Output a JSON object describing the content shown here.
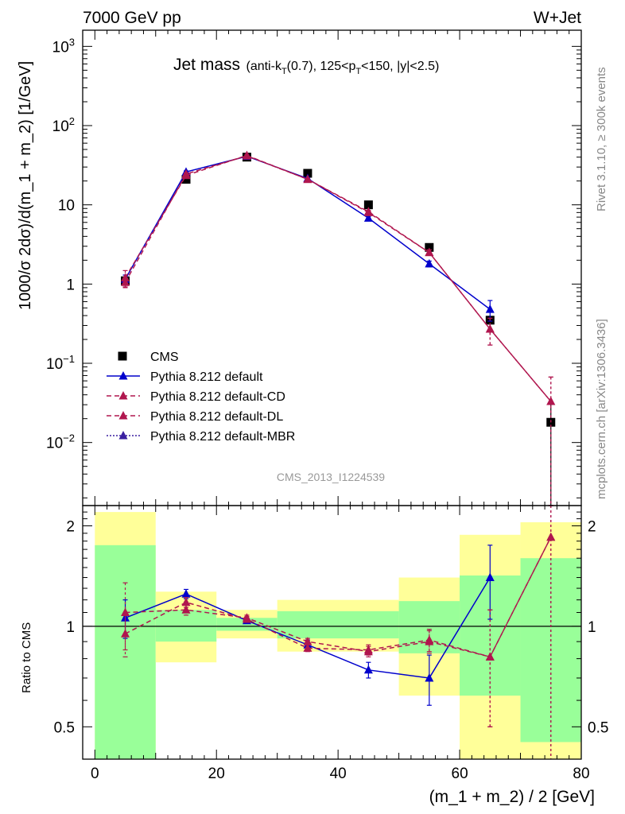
{
  "header": {
    "left": "7000 GeV pp",
    "right": "W+Jet"
  },
  "side_labels": {
    "rivet": "Rivet 3.1.10, ≥ 300k events",
    "mcplots": "mcplots.cern.ch [arXiv:1306.3436]"
  },
  "plot_title": {
    "main": "Jet mass",
    "sub_prefix": "(anti-k",
    "sub_k_sub": "T",
    "sub_middle": "(0.7), 125<p",
    "sub_p_sub": "T",
    "sub_suffix": "<150, |y|<2.5)"
  },
  "watermark": "CMS_2013_I1224539",
  "colors": {
    "cms": "#000000",
    "default": "#0000cc",
    "cd": "#b0164e",
    "dl": "#b0164e",
    "mbr": "#3a1fa0",
    "band_green": "#99ff99",
    "band_yellow": "#ffff99"
  },
  "chart_data": {
    "type": "line",
    "xlabel": "(m_1 + m_2) / 2 [GeV]",
    "xlim": [
      -2,
      80
    ],
    "x_ticks": [
      0,
      20,
      40,
      60,
      80
    ],
    "x_tick_labels": [
      "0",
      "20",
      "40",
      "60",
      "80"
    ],
    "main": {
      "ylabel": "1000/σ 2dσ)/d(m_1 + m_2) [1/GeV]",
      "yscale": "log",
      "ylim": [
        0.0016,
        1600
      ],
      "y_ticks": [
        {
          "value": 1000,
          "base": "10",
          "exp": "3"
        },
        {
          "value": 100,
          "base": "10",
          "exp": "2"
        },
        {
          "value": 10,
          "base": "10",
          "exp": ""
        },
        {
          "value": 1,
          "base": "1",
          "exp": ""
        },
        {
          "value": 0.1,
          "base": "10",
          "exp": "−1"
        },
        {
          "value": 0.01,
          "base": "10",
          "exp": "−2"
        }
      ]
    },
    "ratio": {
      "ylabel": "Ratio to CMS",
      "yscale": "log",
      "ylim": [
        0.4,
        2.3
      ],
      "y_ticks": [
        {
          "value": 0.5,
          "label": "0.5"
        },
        {
          "value": 1,
          "label": "1"
        },
        {
          "value": 2,
          "label": "2"
        }
      ],
      "bands": [
        {
          "x0": 0,
          "x1": 10,
          "green": [
            0.4,
            1.75
          ],
          "yellow": [
            0.4,
            2.2
          ]
        },
        {
          "x0": 10,
          "x1": 20,
          "green": [
            0.9,
            1.12
          ],
          "yellow": [
            0.78,
            1.27
          ]
        },
        {
          "x0": 20,
          "x1": 30,
          "green": [
            0.97,
            1.06
          ],
          "yellow": [
            0.92,
            1.12
          ]
        },
        {
          "x0": 30,
          "x1": 50,
          "green": [
            0.92,
            1.11
          ],
          "yellow": [
            0.84,
            1.2
          ]
        },
        {
          "x0": 50,
          "x1": 60,
          "green": [
            0.83,
            1.19
          ],
          "yellow": [
            0.62,
            1.4
          ]
        },
        {
          "x0": 60,
          "x1": 70,
          "green": [
            0.62,
            1.42
          ],
          "yellow": [
            0.4,
            1.88
          ]
        },
        {
          "x0": 70,
          "x1": 80,
          "green": [
            0.45,
            1.6
          ],
          "yellow": [
            0.4,
            2.05
          ]
        }
      ],
      "series": [
        {
          "name": "Pythia 8.212 default",
          "style": "default",
          "x": [
            5,
            15,
            25,
            35,
            45,
            55,
            65
          ],
          "y": [
            1.06,
            1.25,
            1.04,
            0.88,
            0.74,
            0.7,
            1.4
          ],
          "err": [
            0.14,
            0.04,
            0.02,
            0.03,
            0.04,
            0.12,
            0.35
          ]
        },
        {
          "name": "Pythia 8.212 default-CD",
          "style": "cd",
          "x": [
            5,
            15,
            25,
            35,
            45,
            55,
            65,
            75
          ],
          "y": [
            0.95,
            1.18,
            1.05,
            0.86,
            0.85,
            0.91,
            0.81,
            1.85
          ],
          "err": [
            0.14,
            0.04,
            0.02,
            0.02,
            0.03,
            0.07,
            0.31,
            1.45
          ]
        },
        {
          "name": "Pythia 8.212 default-DL",
          "style": "dl",
          "x": [
            5,
            15,
            25,
            35,
            45,
            55,
            65,
            75
          ],
          "y": [
            1.1,
            1.12,
            1.06,
            0.9,
            0.84,
            0.9,
            0.81,
            1.85
          ],
          "err": [
            0.25,
            0.04,
            0.02,
            0.02,
            0.03,
            0.07,
            0.31,
            1.45
          ]
        }
      ]
    },
    "legend": {
      "placement": "lower-left",
      "entries": [
        {
          "label": "CMS",
          "style": "cms"
        },
        {
          "label": "Pythia 8.212 default",
          "style": "default"
        },
        {
          "label": "Pythia 8.212 default-CD",
          "style": "cd"
        },
        {
          "label": "Pythia 8.212 default-DL",
          "style": "dl"
        },
        {
          "label": "Pythia 8.212 default-MBR",
          "style": "mbr"
        }
      ]
    },
    "series": [
      {
        "name": "CMS",
        "style": "cms",
        "x": [
          5,
          15,
          25,
          35,
          45,
          55,
          65,
          75
        ],
        "y": [
          1.1,
          21,
          40,
          25,
          10,
          2.9,
          0.35,
          0.018
        ],
        "err": [
          0.15,
          1.5,
          2,
          1.5,
          0.8,
          0.3,
          0.05,
          0.017
        ]
      },
      {
        "name": "Pythia 8.212 default",
        "style": "default",
        "x": [
          5,
          15,
          25,
          35,
          45,
          55,
          65
        ],
        "y": [
          1.15,
          26,
          41,
          21.5,
          6.8,
          1.8,
          0.48
        ],
        "err": [
          0.15,
          0.8,
          0.8,
          0.5,
          0.3,
          0.15,
          0.14
        ]
      },
      {
        "name": "Pythia 8.212 default-CD",
        "style": "cd",
        "x": [
          5,
          15,
          25,
          35,
          45,
          55,
          65,
          75
        ],
        "y": [
          1.05,
          24.5,
          41.5,
          21,
          8,
          2.5,
          0.27,
          0.033
        ],
        "err": [
          0.15,
          0.8,
          0.8,
          0.5,
          0.3,
          0.2,
          0.1,
          0.034
        ]
      },
      {
        "name": "Pythia 8.212 default-DL",
        "style": "dl",
        "x": [
          5,
          15,
          25,
          35,
          45,
          55,
          65,
          75
        ],
        "y": [
          1.2,
          23.5,
          42,
          21,
          8.2,
          2.5,
          0.27,
          0.033
        ],
        "err": [
          0.28,
          0.8,
          0.8,
          0.5,
          0.3,
          0.2,
          0.1,
          0.034
        ]
      }
    ]
  }
}
